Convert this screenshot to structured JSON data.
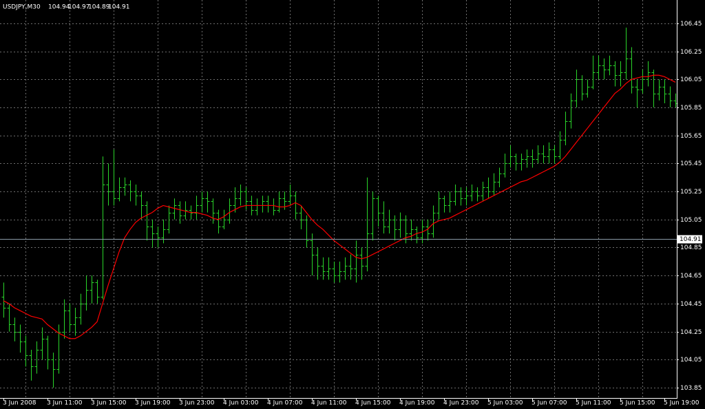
{
  "chart_data": {
    "type": "ohlc",
    "title": "USDJPY,M30",
    "header_values": [
      104.94,
      104.97,
      104.89,
      104.91
    ],
    "categories": [
      "3 Jun 2008",
      null,
      null,
      null,
      null,
      null,
      null,
      null,
      "3 Jun 11:00",
      null,
      null,
      null,
      null,
      null,
      null,
      null,
      "3 Jun 15:00",
      null,
      null,
      null,
      null,
      null,
      null,
      null,
      "3 Jun 19:00",
      null,
      null,
      null,
      null,
      null,
      null,
      null,
      "3 Jun 23:00",
      null,
      null,
      null,
      null,
      null,
      null,
      null,
      "4 Jun 03:00",
      null,
      null,
      null,
      null,
      null,
      null,
      null,
      "4 Jun 07:00",
      null,
      null,
      null,
      null,
      null,
      null,
      null,
      "4 Jun 11:00",
      null,
      null,
      null,
      null,
      null,
      null,
      null,
      "4 Jun 15:00",
      null,
      null,
      null,
      null,
      null,
      null,
      null,
      "4 Jun 19:00",
      null,
      null,
      null,
      null,
      null,
      null,
      null,
      "4 Jun 23:00",
      null,
      null,
      null,
      null,
      null,
      null,
      null,
      "5 Jun 03:00",
      null,
      null,
      null,
      null,
      null,
      null,
      null,
      "5 Jun 07:00",
      null,
      null,
      null,
      null,
      null,
      null,
      null,
      "5 Jun 11:00",
      null,
      null,
      null,
      null,
      null,
      null,
      null,
      "5 Jun 15:00",
      null,
      null,
      null,
      null,
      null,
      null,
      null,
      "5 Jun 19:00",
      null,
      null
    ],
    "open": [
      104.5,
      104.42,
      104.3,
      104.25,
      104.18,
      104.08,
      104.0,
      104.12,
      104.2,
      104.05,
      103.98,
      104.25,
      104.4,
      104.3,
      104.35,
      104.45,
      104.55,
      104.6,
      104.5,
      105.3,
      105.25,
      105.2,
      105.28,
      105.3,
      105.25,
      105.22,
      105.15,
      105.0,
      104.95,
      104.92,
      104.98,
      105.1,
      105.15,
      105.08,
      105.12,
      105.1,
      105.15,
      105.2,
      105.18,
      105.1,
      105.0,
      105.05,
      105.15,
      105.2,
      105.25,
      105.18,
      105.12,
      105.15,
      105.18,
      105.15,
      105.12,
      105.2,
      105.18,
      105.22,
      105.1,
      105.05,
      104.9,
      104.8,
      104.72,
      104.68,
      104.7,
      104.65,
      104.68,
      104.72,
      104.7,
      104.8,
      104.72,
      104.95,
      105.2,
      105.1,
      105.0,
      105.05,
      104.98,
      105.05,
      104.95,
      104.98,
      104.92,
      105.0,
      104.95,
      105.1,
      105.2,
      105.15,
      105.18,
      105.25,
      105.2,
      105.22,
      105.25,
      105.22,
      105.28,
      105.25,
      105.32,
      105.38,
      105.45,
      105.5,
      105.45,
      105.48,
      105.5,
      105.48,
      105.52,
      105.5,
      105.55,
      105.5,
      105.62,
      105.75,
      105.9,
      106.05,
      105.95,
      106.0,
      106.1,
      106.15,
      106.12,
      106.15,
      106.08,
      106.1,
      106.2,
      106.0,
      105.98,
      106.05,
      106.1,
      105.95,
      106.0,
      105.95,
      105.9
    ],
    "high": [
      104.6,
      104.45,
      104.35,
      104.3,
      104.22,
      104.12,
      104.18,
      104.28,
      104.22,
      104.1,
      104.3,
      104.48,
      104.45,
      104.42,
      104.52,
      104.65,
      104.65,
      104.62,
      105.5,
      105.45,
      105.55,
      105.35,
      105.35,
      105.33,
      105.3,
      105.25,
      105.18,
      105.05,
      105.0,
      105.05,
      105.15,
      105.2,
      105.18,
      105.18,
      105.15,
      105.22,
      105.25,
      105.25,
      105.2,
      105.12,
      105.12,
      105.2,
      105.28,
      105.3,
      105.28,
      105.22,
      105.2,
      105.22,
      105.22,
      105.2,
      105.25,
      105.25,
      105.3,
      105.25,
      105.15,
      105.08,
      104.95,
      104.85,
      104.78,
      104.78,
      104.75,
      104.75,
      104.78,
      104.8,
      104.9,
      104.85,
      105.35,
      105.25,
      105.22,
      105.18,
      105.12,
      105.08,
      105.1,
      105.08,
      105.05,
      105.0,
      105.05,
      105.05,
      105.15,
      105.25,
      105.22,
      105.25,
      105.3,
      105.28,
      105.28,
      105.3,
      105.28,
      105.32,
      105.35,
      105.38,
      105.42,
      105.52,
      105.58,
      105.52,
      105.52,
      105.55,
      105.55,
      105.58,
      105.58,
      105.6,
      105.58,
      105.68,
      105.82,
      105.95,
      106.12,
      106.08,
      106.05,
      106.22,
      106.22,
      106.2,
      106.22,
      106.18,
      106.18,
      106.42,
      106.28,
      106.05,
      106.12,
      106.18,
      106.12,
      106.05,
      106.05,
      106.0,
      105.95
    ],
    "low": [
      104.35,
      104.25,
      104.18,
      104.1,
      104.0,
      103.9,
      103.95,
      104.05,
      103.98,
      103.85,
      103.95,
      104.2,
      104.25,
      104.22,
      104.3,
      104.4,
      104.45,
      104.45,
      104.48,
      105.15,
      105.15,
      105.18,
      105.22,
      105.18,
      105.15,
      105.05,
      104.9,
      104.85,
      104.85,
      104.88,
      104.95,
      105.05,
      105.02,
      105.05,
      105.05,
      105.05,
      105.1,
      105.1,
      105.02,
      104.95,
      104.98,
      105.02,
      105.1,
      105.15,
      105.12,
      105.08,
      105.08,
      105.1,
      105.1,
      105.08,
      105.1,
      105.12,
      105.15,
      105.05,
      104.98,
      104.85,
      104.65,
      104.62,
      104.62,
      104.62,
      104.6,
      104.6,
      104.62,
      104.62,
      104.6,
      104.62,
      104.68,
      104.9,
      105.0,
      104.95,
      104.95,
      104.9,
      104.92,
      104.88,
      104.9,
      104.88,
      104.88,
      104.9,
      104.92,
      105.05,
      105.1,
      105.1,
      105.15,
      105.15,
      105.15,
      105.18,
      105.18,
      105.18,
      105.2,
      105.22,
      105.28,
      105.35,
      105.42,
      105.4,
      105.4,
      105.42,
      105.42,
      105.45,
      105.45,
      105.45,
      105.45,
      105.48,
      105.58,
      105.7,
      105.85,
      105.9,
      105.92,
      105.98,
      106.05,
      106.05,
      106.08,
      106.0,
      106.0,
      106.05,
      105.95,
      105.85,
      105.95,
      106.0,
      105.85,
      105.9,
      105.88,
      105.85,
      105.85
    ],
    "close": [
      104.42,
      104.3,
      104.25,
      104.18,
      104.08,
      104.0,
      104.12,
      104.2,
      104.05,
      103.98,
      104.25,
      104.4,
      104.3,
      104.35,
      104.45,
      104.55,
      104.6,
      104.5,
      105.3,
      105.25,
      105.2,
      105.28,
      105.3,
      105.25,
      105.22,
      105.15,
      105.0,
      104.95,
      104.92,
      104.98,
      105.1,
      105.15,
      105.08,
      105.12,
      105.1,
      105.15,
      105.2,
      105.18,
      105.1,
      105.0,
      105.05,
      105.15,
      105.2,
      105.25,
      105.18,
      105.12,
      105.15,
      105.18,
      105.15,
      105.12,
      105.2,
      105.18,
      105.22,
      105.1,
      105.05,
      104.9,
      104.8,
      104.72,
      104.68,
      104.7,
      104.65,
      104.68,
      104.72,
      104.7,
      104.8,
      104.72,
      104.95,
      105.2,
      105.1,
      105.0,
      105.05,
      104.98,
      105.05,
      104.95,
      104.98,
      104.92,
      105.0,
      104.95,
      105.1,
      105.2,
      105.15,
      105.18,
      105.25,
      105.2,
      105.22,
      105.25,
      105.22,
      105.28,
      105.25,
      105.32,
      105.38,
      105.45,
      105.5,
      105.45,
      105.48,
      105.5,
      105.48,
      105.52,
      105.5,
      105.55,
      105.5,
      105.62,
      105.75,
      105.9,
      106.05,
      105.95,
      106.0,
      106.1,
      106.15,
      106.12,
      106.15,
      106.08,
      106.1,
      106.2,
      106.0,
      105.98,
      106.05,
      106.1,
      105.95,
      106.0,
      105.95,
      105.9,
      105.88
    ],
    "color": "#2ad62a",
    "ma": {
      "color": "#ff0000",
      "values": [
        104.47,
        104.45,
        104.42,
        104.4,
        104.38,
        104.36,
        104.35,
        104.34,
        104.3,
        104.27,
        104.24,
        104.22,
        104.2,
        104.2,
        104.22,
        104.25,
        104.28,
        104.32,
        104.45,
        104.58,
        104.7,
        104.82,
        104.92,
        104.98,
        105.03,
        105.06,
        105.08,
        105.1,
        105.13,
        105.15,
        105.14,
        105.13,
        105.12,
        105.11,
        105.1,
        105.1,
        105.09,
        105.08,
        105.06,
        105.05,
        105.07,
        105.1,
        105.12,
        105.14,
        105.15,
        105.15,
        105.15,
        105.15,
        105.15,
        105.15,
        105.14,
        105.14,
        105.15,
        105.17,
        105.15,
        105.1,
        105.05,
        105.01,
        104.98,
        104.94,
        104.9,
        104.87,
        104.84,
        104.81,
        104.78,
        104.77,
        104.78,
        104.8,
        104.82,
        104.84,
        104.86,
        104.88,
        104.9,
        104.92,
        104.93,
        104.95,
        104.96,
        104.98,
        105.02,
        105.04,
        105.05,
        105.06,
        105.08,
        105.1,
        105.12,
        105.14,
        105.16,
        105.18,
        105.2,
        105.22,
        105.24,
        105.26,
        105.28,
        105.3,
        105.32,
        105.33,
        105.35,
        105.37,
        105.39,
        105.41,
        105.43,
        105.46,
        105.5,
        105.55,
        105.6,
        105.65,
        105.7,
        105.75,
        105.8,
        105.85,
        105.9,
        105.95,
        105.98,
        106.02,
        106.05,
        106.06,
        106.07,
        106.07,
        106.08,
        106.08,
        106.07,
        106.05,
        106.03
      ]
    },
    "current_price": 104.91,
    "ylim": [
      103.776,
      106.617
    ],
    "yticks": [
      106.45,
      106.25,
      106.05,
      105.85,
      105.65,
      105.45,
      105.25,
      105.05,
      104.85,
      104.65,
      104.45,
      104.25,
      104.05,
      103.85
    ],
    "grid": true
  }
}
